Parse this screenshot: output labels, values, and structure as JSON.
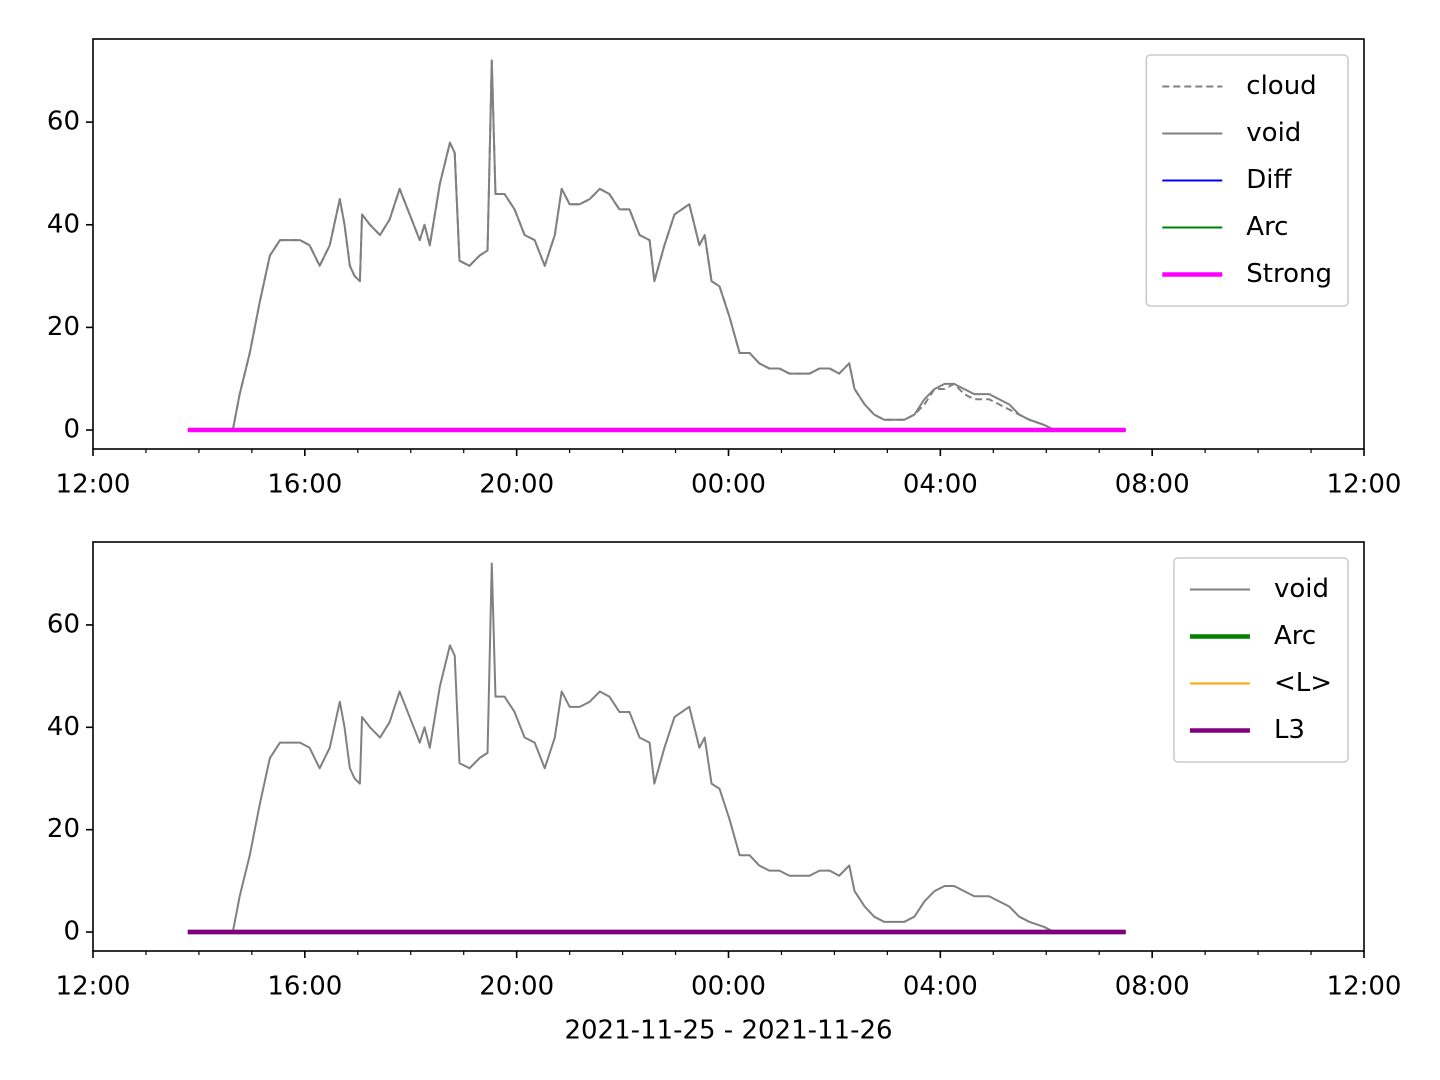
{
  "chart_data": [
    {
      "type": "line",
      "legend": "upper right",
      "xlim": [
        0,
        24
      ],
      "ylim": [
        -3.7,
        76.2
      ],
      "xticks": [
        {
          "value": 0,
          "label": "12:00"
        },
        {
          "value": 4,
          "label": "16:00"
        },
        {
          "value": 8,
          "label": "20:00"
        },
        {
          "value": 12,
          "label": "00:00"
        },
        {
          "value": 16,
          "label": "04:00"
        },
        {
          "value": 20,
          "label": "08:00"
        },
        {
          "value": 24,
          "label": "12:00"
        }
      ],
      "xminorticks": [
        1,
        2,
        3,
        5,
        6,
        7,
        9,
        10,
        11,
        13,
        14,
        15,
        17,
        18,
        19,
        21,
        22,
        23
      ],
      "yticks": [
        0,
        20,
        40,
        60
      ],
      "series": [
        {
          "name": "cloud",
          "color": "#808080",
          "width": 2,
          "dash": "dashed",
          "x": [
            1.79,
            2.64,
            2.77,
            2.96,
            3.15,
            3.34,
            3.53,
            3.72,
            3.91,
            4.09,
            4.28,
            4.47,
            4.66,
            4.75,
            4.85,
            4.94,
            5.04,
            5.08,
            5.23,
            5.42,
            5.6,
            5.79,
            5.98,
            6.17,
            6.26,
            6.36,
            6.55,
            6.74,
            6.83,
            6.92,
            7.11,
            7.3,
            7.45,
            7.53,
            7.6,
            7.77,
            7.96,
            8.15,
            8.34,
            8.53,
            8.72,
            8.85,
            9.0,
            9.19,
            9.38,
            9.57,
            9.75,
            9.94,
            10.13,
            10.32,
            10.51,
            10.6,
            10.79,
            10.98,
            11.26,
            11.45,
            11.55,
            11.68,
            11.83,
            12.02,
            12.21,
            12.4,
            12.58,
            12.77,
            12.96,
            13.15,
            13.34,
            13.53,
            13.72,
            13.91,
            14.09,
            14.28,
            14.38,
            14.57,
            14.75,
            14.94,
            15.13,
            15.32,
            15.51,
            15.7,
            15.89,
            16.08,
            16.26,
            16.45,
            16.64,
            16.92,
            17.11,
            17.3,
            17.49,
            17.68,
            17.96,
            18.15
          ],
          "values": [
            0,
            0,
            7,
            15,
            25,
            34,
            37,
            37,
            37,
            36,
            32,
            36,
            45,
            40,
            32,
            30,
            29,
            42,
            40,
            38,
            41,
            47,
            42,
            37,
            40,
            36,
            48,
            56,
            54,
            33,
            32,
            34,
            35,
            72,
            46,
            46,
            43,
            38,
            37,
            32,
            38,
            47,
            44,
            44,
            45,
            47,
            46,
            43,
            43,
            38,
            37,
            29,
            36,
            42,
            44,
            36,
            38,
            29,
            28,
            22,
            15,
            15,
            13,
            12,
            12,
            11,
            11,
            11,
            12,
            12,
            11,
            13,
            8,
            5,
            3,
            2,
            2,
            2,
            3,
            5,
            8,
            8,
            9,
            7,
            6,
            6,
            5,
            4,
            3,
            2,
            1,
            0
          ]
        },
        {
          "name": "void",
          "color": "#808080",
          "width": 2,
          "dash": "solid",
          "x": [
            1.79,
            2.64,
            2.77,
            2.96,
            3.15,
            3.34,
            3.53,
            3.72,
            3.91,
            4.09,
            4.28,
            4.47,
            4.66,
            4.75,
            4.85,
            4.94,
            5.04,
            5.08,
            5.23,
            5.42,
            5.6,
            5.79,
            5.98,
            6.17,
            6.26,
            6.36,
            6.55,
            6.74,
            6.83,
            6.92,
            7.11,
            7.3,
            7.45,
            7.53,
            7.6,
            7.77,
            7.96,
            8.15,
            8.34,
            8.53,
            8.72,
            8.85,
            9.0,
            9.19,
            9.38,
            9.57,
            9.75,
            9.94,
            10.13,
            10.32,
            10.51,
            10.6,
            10.79,
            10.98,
            11.26,
            11.45,
            11.55,
            11.68,
            11.83,
            12.02,
            12.21,
            12.4,
            12.58,
            12.77,
            12.96,
            13.15,
            13.34,
            13.53,
            13.72,
            13.91,
            14.09,
            14.28,
            14.38,
            14.57,
            14.75,
            14.94,
            15.13,
            15.32,
            15.51,
            15.7,
            15.89,
            16.08,
            16.26,
            16.45,
            16.64,
            16.92,
            17.11,
            17.3,
            17.49,
            17.68,
            17.96,
            18.15
          ],
          "values": [
            0,
            0,
            7,
            15,
            25,
            34,
            37,
            37,
            37,
            36,
            32,
            36,
            45,
            40,
            32,
            30,
            29,
            42,
            40,
            38,
            41,
            47,
            42,
            37,
            40,
            36,
            48,
            56,
            54,
            33,
            32,
            34,
            35,
            72,
            46,
            46,
            43,
            38,
            37,
            32,
            38,
            47,
            44,
            44,
            45,
            47,
            46,
            43,
            43,
            38,
            37,
            29,
            36,
            42,
            44,
            36,
            38,
            29,
            28,
            22,
            15,
            15,
            13,
            12,
            12,
            11,
            11,
            11,
            12,
            12,
            11,
            13,
            8,
            5,
            3,
            2,
            2,
            2,
            3,
            6,
            8,
            9,
            9,
            8,
            7,
            7,
            6,
            5,
            3,
            2,
            1,
            0
          ]
        },
        {
          "name": "Diff",
          "color": "#0000ff",
          "width": 2,
          "dash": "solid",
          "x": [
            1.79,
            19.5
          ],
          "values": [
            0,
            0
          ]
        },
        {
          "name": "Arc",
          "color": "#008000",
          "width": 2,
          "dash": "solid",
          "x": [
            1.79,
            19.5
          ],
          "values": [
            0,
            0
          ]
        },
        {
          "name": "Strong",
          "color": "#ff00ff",
          "width": 4.5,
          "dash": "solid",
          "x": [
            1.79,
            19.5
          ],
          "values": [
            0,
            0
          ]
        }
      ]
    },
    {
      "type": "line",
      "legend": "upper right",
      "xlim": [
        0,
        24
      ],
      "ylim": [
        -3.7,
        76.2
      ],
      "xlabel": "2021-11-25 - 2021-11-26",
      "xticks": [
        {
          "value": 0,
          "label": "12:00"
        },
        {
          "value": 4,
          "label": "16:00"
        },
        {
          "value": 8,
          "label": "20:00"
        },
        {
          "value": 12,
          "label": "00:00"
        },
        {
          "value": 16,
          "label": "04:00"
        },
        {
          "value": 20,
          "label": "08:00"
        },
        {
          "value": 24,
          "label": "12:00"
        }
      ],
      "xminorticks": [
        1,
        2,
        3,
        5,
        6,
        7,
        9,
        10,
        11,
        13,
        14,
        15,
        17,
        18,
        19,
        21,
        22,
        23
      ],
      "yticks": [
        0,
        20,
        40,
        60
      ],
      "series": [
        {
          "name": "void",
          "color": "#808080",
          "width": 2,
          "dash": "solid",
          "x": [
            1.79,
            2.64,
            2.77,
            2.96,
            3.15,
            3.34,
            3.53,
            3.72,
            3.91,
            4.09,
            4.28,
            4.47,
            4.66,
            4.75,
            4.85,
            4.94,
            5.04,
            5.08,
            5.23,
            5.42,
            5.6,
            5.79,
            5.98,
            6.17,
            6.26,
            6.36,
            6.55,
            6.74,
            6.83,
            6.92,
            7.11,
            7.3,
            7.45,
            7.53,
            7.6,
            7.77,
            7.96,
            8.15,
            8.34,
            8.53,
            8.72,
            8.85,
            9.0,
            9.19,
            9.38,
            9.57,
            9.75,
            9.94,
            10.13,
            10.32,
            10.51,
            10.6,
            10.79,
            10.98,
            11.26,
            11.45,
            11.55,
            11.68,
            11.83,
            12.02,
            12.21,
            12.4,
            12.58,
            12.77,
            12.96,
            13.15,
            13.34,
            13.53,
            13.72,
            13.91,
            14.09,
            14.28,
            14.38,
            14.57,
            14.75,
            14.94,
            15.13,
            15.32,
            15.51,
            15.7,
            15.89,
            16.08,
            16.26,
            16.45,
            16.64,
            16.92,
            17.11,
            17.3,
            17.49,
            17.68,
            17.96,
            18.15
          ],
          "values": [
            0,
            0,
            7,
            15,
            25,
            34,
            37,
            37,
            37,
            36,
            32,
            36,
            45,
            40,
            32,
            30,
            29,
            42,
            40,
            38,
            41,
            47,
            42,
            37,
            40,
            36,
            48,
            56,
            54,
            33,
            32,
            34,
            35,
            72,
            46,
            46,
            43,
            38,
            37,
            32,
            38,
            47,
            44,
            44,
            45,
            47,
            46,
            43,
            43,
            38,
            37,
            29,
            36,
            42,
            44,
            36,
            38,
            29,
            28,
            22,
            15,
            15,
            13,
            12,
            12,
            11,
            11,
            11,
            12,
            12,
            11,
            13,
            8,
            5,
            3,
            2,
            2,
            2,
            3,
            6,
            8,
            9,
            9,
            8,
            7,
            7,
            6,
            5,
            3,
            2,
            1,
            0
          ]
        },
        {
          "name": "Arc",
          "color": "#008000",
          "width": 4.5,
          "dash": "solid",
          "x": [
            1.79,
            19.5
          ],
          "values": [
            0,
            0
          ]
        },
        {
          "name": "<L>",
          "color": "#ffa500",
          "width": 2,
          "dash": "solid",
          "x": [
            1.79,
            19.5
          ],
          "values": [
            0,
            0
          ]
        },
        {
          "name": "L3",
          "color": "#800080",
          "width": 4.5,
          "dash": "solid",
          "x": [
            1.79,
            19.5
          ],
          "values": [
            0,
            0
          ]
        }
      ]
    }
  ]
}
